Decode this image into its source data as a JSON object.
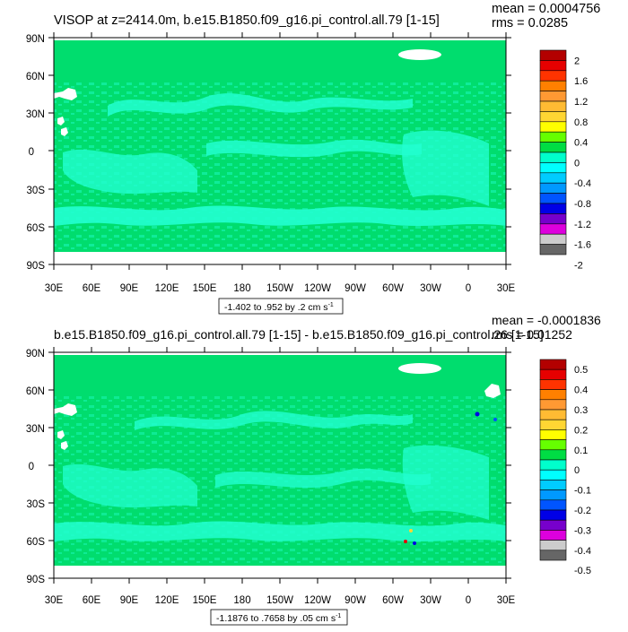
{
  "chart_data": [
    {
      "type": "heatmap",
      "title": "VISOP at z=2414.0m, b.e15.B1850.f09_g16.pi_control.all.79 [1-15]",
      "stats": {
        "mean": "mean = 0.0004756",
        "rms": "rms = 0.0285"
      },
      "x_ticks": [
        "30E",
        "60E",
        "90E",
        "120E",
        "150E",
        "180",
        "150W",
        "120W",
        "90W",
        "60W",
        "30W",
        "0",
        "30E"
      ],
      "y_ticks": [
        "90N",
        "60N",
        "30N",
        "0",
        "30S",
        "60S",
        "90S"
      ],
      "range_label": "-1.402 to .952 by .2 cm s",
      "range_unit_sup": "-1",
      "colorbar": {
        "labels": [
          "2",
          "1.6",
          "1.2",
          "0.8",
          "0.4",
          "0",
          "-0.4",
          "-0.8",
          "-1.2",
          "-1.6",
          "-2"
        ],
        "colors": [
          "#b30000",
          "#e60000",
          "#ff3300",
          "#ff8000",
          "#ff9933",
          "#ffbb33",
          "#ffd633",
          "#ffff00",
          "#66ff00",
          "#00dd44",
          "#00ffcc",
          "#00ffff",
          "#00ccff",
          "#0099ff",
          "#0055ff",
          "#0000e6",
          "#7700cc",
          "#dd00dd",
          "#cccccc",
          "#666666"
        ]
      }
    },
    {
      "type": "heatmap",
      "title": "b.e15.B1850.f09_g16.pi_control.all.79 [1-15] - b.e15.B1850.f09_g16.pi_control.26 [1-15]",
      "stats": {
        "mean": "mean = -0.0001836",
        "rms": "rms = 0.01252"
      },
      "x_ticks": [
        "30E",
        "60E",
        "90E",
        "120E",
        "150E",
        "180",
        "150W",
        "120W",
        "90W",
        "60W",
        "30W",
        "0",
        "30E"
      ],
      "y_ticks": [
        "90N",
        "60N",
        "30N",
        "0",
        "30S",
        "60S",
        "90S"
      ],
      "range_label": "-1.1876 to .7658 by .05 cm s",
      "range_unit_sup": "-1",
      "colorbar": {
        "labels": [
          "0.5",
          "0.4",
          "0.3",
          "0.2",
          "0.1",
          "0",
          "-0.1",
          "-0.2",
          "-0.3",
          "-0.4",
          "-0.5"
        ],
        "colors": [
          "#b30000",
          "#e60000",
          "#ff3300",
          "#ff8000",
          "#ff9933",
          "#ffbb33",
          "#ffd633",
          "#ffff00",
          "#66ff00",
          "#00dd44",
          "#00ffcc",
          "#00ffff",
          "#00ccff",
          "#0099ff",
          "#0055ff",
          "#0000e6",
          "#7700cc",
          "#dd00dd",
          "#cccccc",
          "#666666"
        ]
      }
    }
  ],
  "colors": {
    "field_main": "#00dd6e",
    "field_secondary": "#22ffd0",
    "land": "#ffffff"
  }
}
